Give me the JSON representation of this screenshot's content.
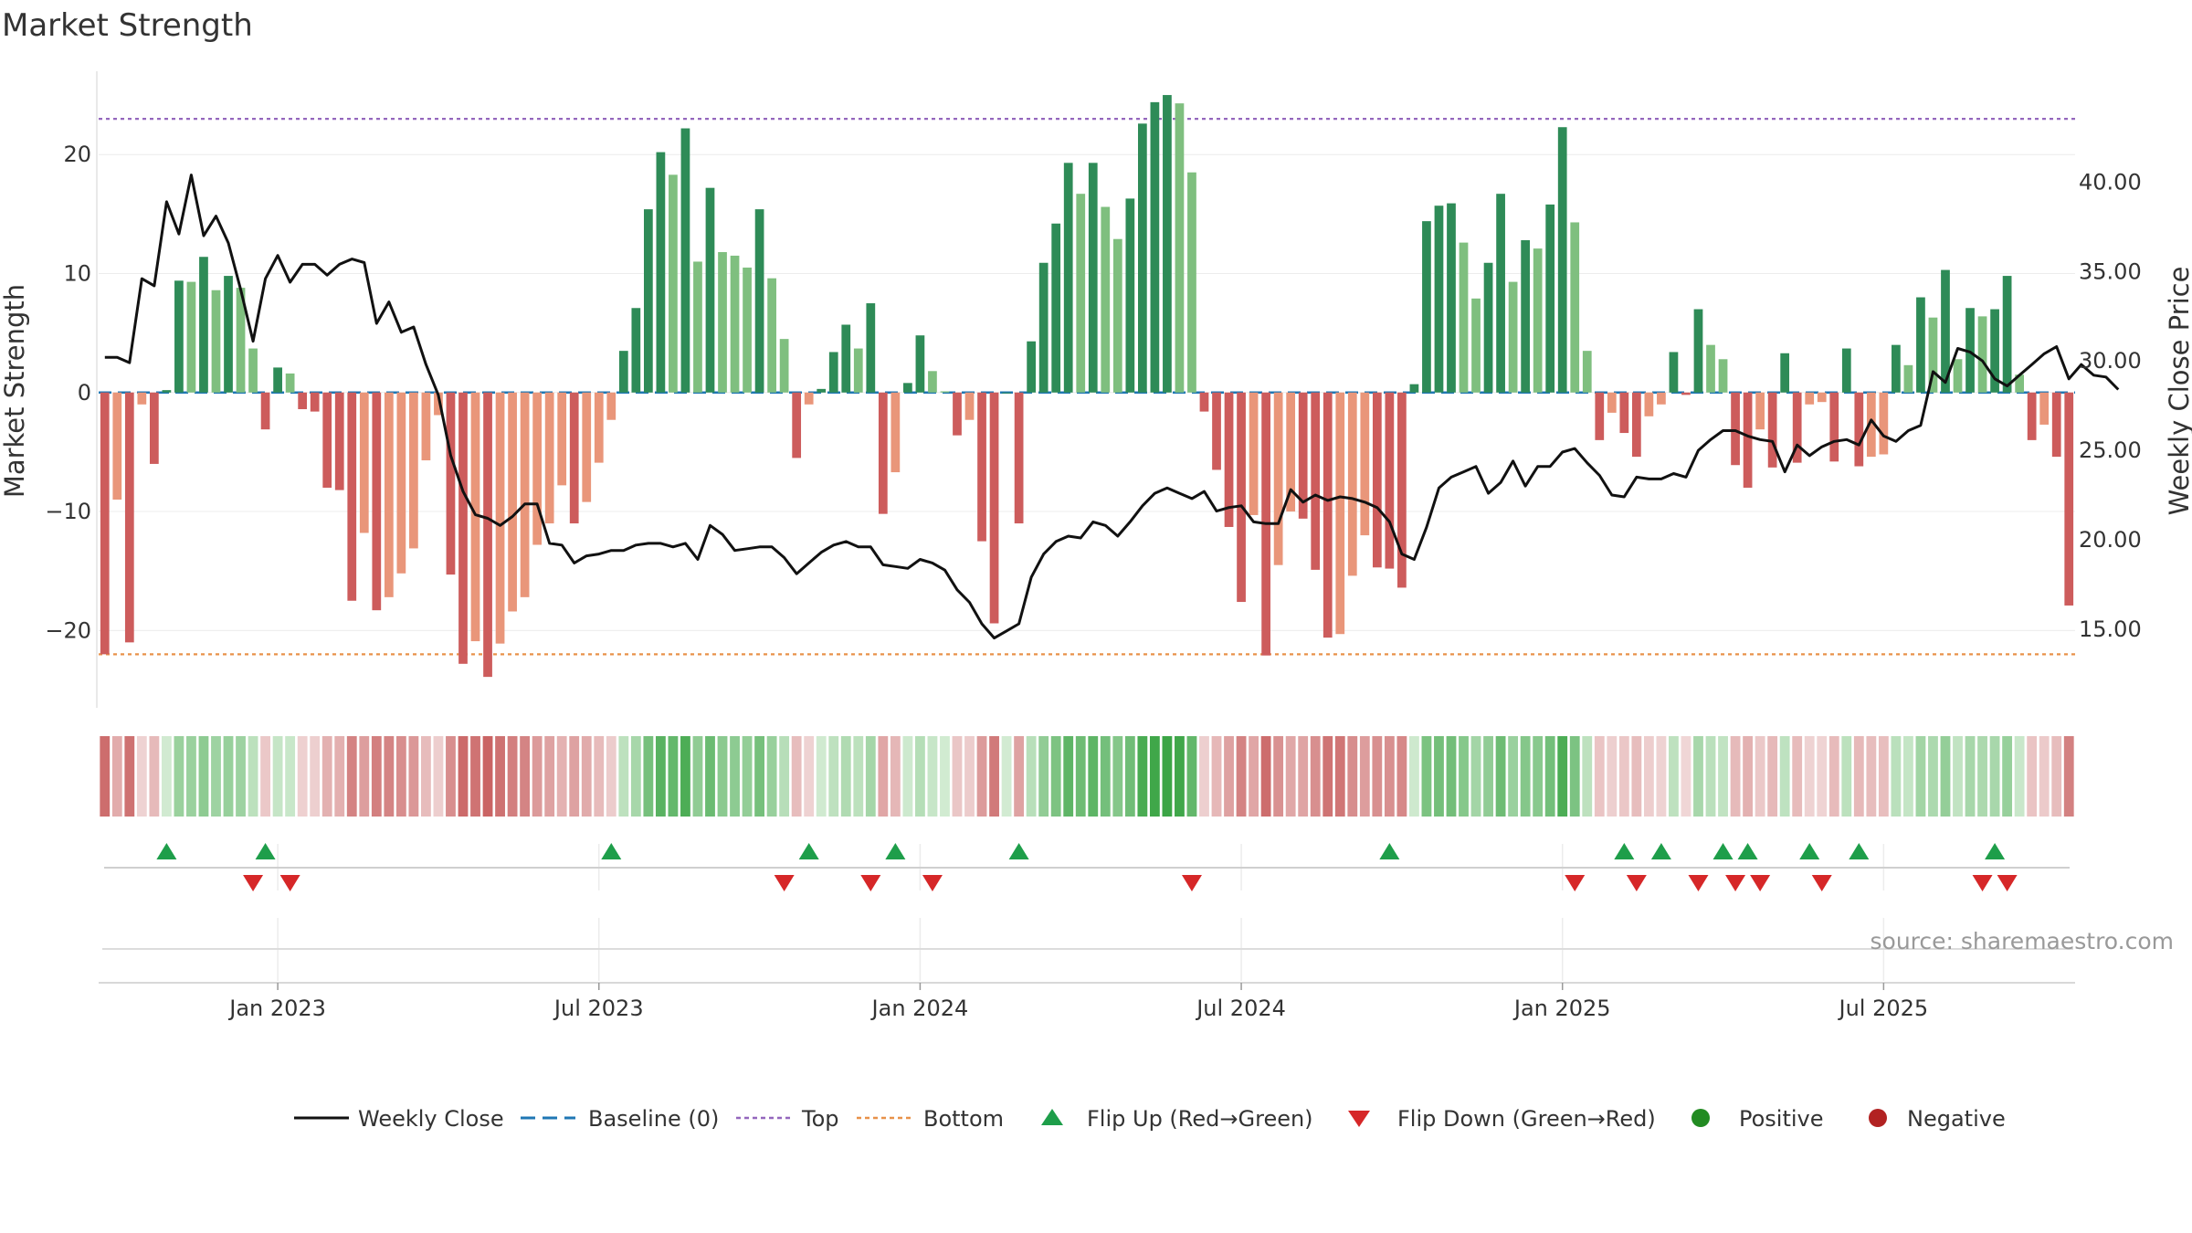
{
  "title": "Market Strength",
  "source_note": "source: sharemaestro.com",
  "colors": {
    "strong_green": "#2e8b57",
    "light_green": "#7fbf7f",
    "strong_red": "#cd5c5c",
    "light_red": "#e9967a",
    "price_line": "#111111",
    "baseline": "#1f77b4",
    "top_line": "#9467bd",
    "bottom_line": "#e8924a",
    "flip_up": "#1e9e4a",
    "flip_down": "#d62728",
    "positive": "#228b22",
    "negative": "#b22222"
  },
  "chart_data": {
    "type": "bar",
    "xlabel": "",
    "ylabel": "Market Strength",
    "y2label": "Weekly Close Price",
    "ylim": [
      -26.5,
      27
    ],
    "y2lim": [
      10.6,
      46.2
    ],
    "yticks": [
      20,
      10,
      0,
      -10,
      -20
    ],
    "y2ticks": [
      "40.00",
      "35.00",
      "30.00",
      "25.00",
      "20.00",
      "15.00"
    ],
    "y2tick_values": [
      40,
      35,
      30,
      25,
      20,
      15
    ],
    "x_tick_labels": [
      "Jan 2023",
      "Jul 2023",
      "Jan 2024",
      "Jul 2024",
      "Jan 2025",
      "Jul 2025"
    ],
    "x_tick_weeks": [
      14,
      40,
      66,
      92,
      118,
      144
    ],
    "top_level": 23.0,
    "bottom_level": -22.0,
    "baseline_level": 0,
    "strength": [
      -22,
      -9,
      -21,
      -1,
      -6,
      0.2,
      9.4,
      9.3,
      11.4,
      8.6,
      9.8,
      8.8,
      3.7,
      -3.1,
      2.1,
      1.6,
      -1.4,
      -1.6,
      -8,
      -8.2,
      -17.5,
      -11.8,
      -18.3,
      -17.2,
      -15.2,
      -13.1,
      -5.7,
      -1.9,
      -15.3,
      -22.8,
      -20.9,
      -23.9,
      -21.1,
      -18.4,
      -17.2,
      -12.8,
      -11,
      -7.8,
      -11,
      -9.2,
      -5.9,
      -2.3,
      3.5,
      7.1,
      15.4,
      20.2,
      18.3,
      22.2,
      11,
      17.2,
      11.8,
      11.5,
      10.5,
      15.4,
      9.6,
      4.5,
      -5.5,
      -1,
      0.3,
      3.4,
      5.7,
      3.7,
      7.5,
      -10.2,
      -6.7,
      0.8,
      4.8,
      1.8,
      0.1,
      -3.6,
      -2.3,
      -12.5,
      -19.4,
      0,
      -11,
      4.3,
      10.9,
      14.2,
      19.3,
      16.7,
      19.3,
      15.6,
      12.9,
      16.3,
      22.6,
      24.4,
      25,
      24.3,
      18.5,
      -1.6,
      -6.5,
      -11.3,
      -17.6,
      -10.3,
      -22.1,
      -14.5,
      -10,
      -10.6,
      -14.9,
      -20.6,
      -20.3,
      -15.4,
      -12,
      -14.7,
      -14.8,
      -16.4,
      0.7,
      14.4,
      15.7,
      15.9,
      12.6,
      7.9,
      10.9,
      16.7,
      9.3,
      12.8,
      12.1,
      15.8,
      22.3,
      14.3,
      3.5,
      -4,
      -1.7,
      -3.4,
      -5.4,
      -2,
      -1,
      3.4,
      -0.2,
      7,
      4,
      2.8,
      -6.1,
      -8,
      -3.1,
      -6.3,
      3.3,
      -5.9,
      -1,
      -0.8,
      -5.8,
      3.7,
      -6.2,
      -5.4,
      -5.2,
      4,
      2.3,
      8,
      6.3,
      10.3,
      2.8,
      7.1,
      6.4,
      7,
      9.8,
      1.5,
      -4,
      -2.7,
      -5.4,
      -17.9
    ],
    "price": [
      30.2,
      30.2,
      29.9,
      34.6,
      34.2,
      38.9,
      37.1,
      40.4,
      37,
      38.1,
      36.6,
      34,
      31.1,
      34.6,
      35.9,
      34.4,
      35.4,
      35.4,
      34.8,
      35.4,
      35.7,
      35.5,
      32.1,
      33.3,
      31.6,
      31.9,
      29.8,
      28.1,
      24.7,
      22.7,
      21.4,
      21.2,
      20.8,
      21.3,
      22,
      22,
      19.8,
      19.7,
      18.7,
      19.1,
      19.2,
      19.4,
      19.4,
      19.7,
      19.8,
      19.8,
      19.6,
      19.8,
      18.9,
      20.8,
      20.3,
      19.4,
      19.5,
      19.6,
      19.6,
      19,
      18.1,
      18.7,
      19.3,
      19.7,
      19.9,
      19.6,
      19.6,
      18.6,
      18.5,
      18.4,
      18.9,
      18.7,
      18.3,
      17.2,
      16.5,
      15.3,
      14.5,
      14.9,
      15.3,
      17.9,
      19.2,
      19.9,
      20.2,
      20.1,
      21,
      20.8,
      20.2,
      21,
      21.9,
      22.6,
      22.9,
      22.6,
      22.3,
      22.7,
      21.6,
      21.8,
      21.9,
      21,
      20.9,
      20.9,
      22.8,
      22.1,
      22.5,
      22.2,
      22.4,
      22.3,
      22.1,
      21.8,
      21,
      19.2,
      18.9,
      20.7,
      22.9,
      23.5,
      23.8,
      24.1,
      22.6,
      23.2,
      24.4,
      23,
      24.1,
      24.1,
      24.9,
      25.1,
      24.3,
      23.6,
      22.5,
      22.4,
      23.5,
      23.4,
      23.4,
      23.7,
      23.5,
      25,
      25.6,
      26.1,
      26.1,
      25.8,
      25.6,
      25.5,
      23.8,
      25.3,
      24.7,
      25.2,
      25.5,
      25.6,
      25.3,
      26.7,
      25.8,
      25.5,
      26.1,
      26.4,
      29.4,
      28.8,
      30.7,
      30.5,
      30,
      29,
      28.6,
      29.2,
      29.8,
      30.4,
      30.8,
      29,
      29.8,
      29.2,
      29.1,
      28.4
    ],
    "flip_up_weeks": [
      5,
      13,
      41,
      57,
      64,
      74,
      104,
      123,
      126,
      131,
      133,
      138,
      142,
      153
    ],
    "flip_down_weeks": [
      12,
      15,
      55,
      62,
      67,
      88,
      119,
      124,
      129,
      132,
      134,
      139,
      152,
      154
    ]
  },
  "legend": [
    {
      "label": "Weekly Close",
      "marker": "solid-line"
    },
    {
      "label": "Baseline (0)",
      "marker": "dashed-line"
    },
    {
      "label": "Top",
      "marker": "dotted-purple-line"
    },
    {
      "label": "Bottom",
      "marker": "dotted-orange-line"
    },
    {
      "label": "Flip Up (Red→Green)",
      "marker": "triangle-up-icon"
    },
    {
      "label": "Flip Down (Green→Red)",
      "marker": "triangle-down-icon"
    },
    {
      "label": "Positive",
      "marker": "green-dot-icon"
    },
    {
      "label": "Negative",
      "marker": "red-dot-icon"
    }
  ]
}
